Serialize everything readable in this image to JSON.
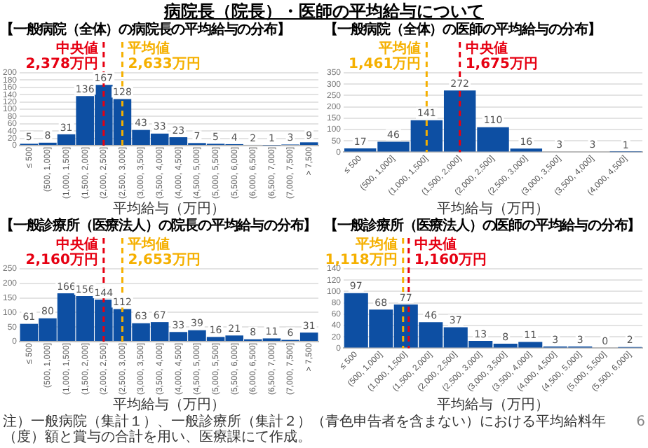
{
  "chart_data": [
    {
      "type": "bar",
      "title": "【一般病院（全体）の病院長の平均給与の分布】",
      "xlabel": "平均給与（万円）",
      "annotations": [
        "病院長（院長）・医師の平均給与について"
      ],
      "categories": [
        "≤ 500",
        "(500, 1,000]",
        "(1,000, 1,500]",
        "(1,500, 2,000]",
        "(2,000, 2,500]",
        "(2,500, 3,000]",
        "(3,000, 3,500]",
        "(3,500, 4,000]",
        "(4,000, 4,500]",
        "(4,500, 5,000]",
        "(5,000, 5,500]",
        "(5,500, 6,000]",
        "(6,000, 6,500]",
        "(6,500, 7,000]",
        "(7,000, 7,500]",
        "> 7,500"
      ],
      "values": [
        5,
        8,
        31,
        136,
        167,
        128,
        43,
        33,
        23,
        7,
        5,
        4,
        2,
        1,
        3,
        9
      ],
      "color": "#0d4fa3",
      "data_labels": true,
      "grid": "y",
      "ylim": [
        0,
        200
      ],
      "yticks": [
        0,
        20,
        40,
        60,
        80,
        100,
        120,
        140,
        160,
        180,
        200
      ],
      "ref_lines": [
        {
          "axis": "x",
          "value": "(2,000, 2,500]",
          "label": "中央値\n2,378万円",
          "color": "#e60012",
          "line_style": "dashed"
        },
        {
          "axis": "x",
          "value": "(2,500, 3,000]",
          "label": "平均値\n2,633万円",
          "color": "#f5b000",
          "line_style": "dashed"
        }
      ]
    },
    {
      "type": "bar",
      "title": "【一般病院（全体）の医師の平均給与の分布】",
      "xlabel": "平均給与（万円）",
      "categories": [
        "≤ 500",
        "(500, 1,000]",
        "(1,000, 1,500]",
        "(1,500, 2,000]",
        "(2,000, 2,500]",
        "(2,500, 3,000]",
        "(3,000, 3,500]",
        "(3,500, 4,000]",
        "(4,000, 4,500]"
      ],
      "values": [
        17,
        46,
        141,
        272,
        110,
        16,
        3,
        3,
        1
      ],
      "color": "#0d4fa3",
      "data_labels": true,
      "grid": "y",
      "ylim": [
        0,
        350
      ],
      "yticks": [
        0,
        50,
        100,
        150,
        200,
        250,
        300,
        350
      ],
      "ref_lines": [
        {
          "axis": "x",
          "value": "(1,000, 1,500]",
          "label": "平均値\n1,461万円",
          "color": "#f5b000",
          "line_style": "dashed"
        },
        {
          "axis": "x",
          "value": "(1,500, 2,000]",
          "label": "中央値\n1,675万円",
          "color": "#e60012",
          "line_style": "dashed"
        }
      ]
    },
    {
      "type": "bar",
      "title": "【一般診療所（医療法人）の院長の平均給与の分布】",
      "xlabel": "平均給与（万円）",
      "categories": [
        "≤ 500",
        "(500, 1,000]",
        "(1,000, 1,500]",
        "(1,500, 2,000]",
        "(2,000, 2,500]",
        "(2,500, 3,000]",
        "(3,000, 3,500]",
        "(3,500, 4,000]",
        "(4,000, 4,500]",
        "(4,500, 5,000]",
        "(5,000, 5,500]",
        "(5,500, 6,000]",
        "(6,000, 6,500]",
        "(6,500, 7,000]",
        "(7,000, 7,500]",
        "> 7,500"
      ],
      "values": [
        61,
        80,
        166,
        156,
        144,
        112,
        63,
        67,
        33,
        39,
        16,
        21,
        8,
        11,
        6,
        31
      ],
      "color": "#0d4fa3",
      "data_labels": true,
      "grid": "y",
      "ylim": [
        0,
        250
      ],
      "yticks": [
        0,
        50,
        100,
        150,
        200,
        250
      ],
      "ref_lines": [
        {
          "axis": "x",
          "value": "(2,000, 2,500]",
          "label": "中央値\n2,160万円",
          "color": "#e60012",
          "line_style": "dashed"
        },
        {
          "axis": "x",
          "value": "(2,500, 3,000]",
          "label": "平均値\n2,653万円",
          "color": "#f5b000",
          "line_style": "dashed"
        }
      ]
    },
    {
      "type": "bar",
      "title": "【一般診療所（医療法人）の医師の平均給与の分布】",
      "xlabel": "平均給与（万円）",
      "annotations": [
        "注）一般病院（集計１）、一般診療所（集計２）（青色申告者を含まない）における平均給料年（度）額と賞与の合計を用い、医療課にて作成。",
        "6"
      ],
      "categories": [
        "≤ 500",
        "(500, 1,000]",
        "(1,000, 1,500]",
        "(1,500, 2,000]",
        "(2,000, 2,500]",
        "(2,500, 3,000]",
        "(3,000, 3,500]",
        "(3,500, 4,000]",
        "(4,000, 4,500]",
        "(4,500, 5,000]",
        "(5,000, 5,500]",
        "(5,500, 6,000]"
      ],
      "values": [
        97,
        68,
        77,
        46,
        37,
        13,
        8,
        11,
        3,
        3,
        0,
        2
      ],
      "color": "#0d4fa3",
      "data_labels": true,
      "grid": "y",
      "ylim": [
        0,
        140
      ],
      "yticks": [
        0,
        20,
        40,
        60,
        80,
        100,
        120,
        140
      ],
      "ref_lines": [
        {
          "axis": "x",
          "value": "(1,000, 1,500]",
          "label": "平均値\n1,118万円",
          "color": "#f5b000",
          "line_style": "dashed"
        },
        {
          "axis": "x",
          "value": "(1,000, 1,500]",
          "label": "中央値\n1,160万円",
          "color": "#e60012",
          "line_style": "dashed"
        }
      ]
    }
  ]
}
